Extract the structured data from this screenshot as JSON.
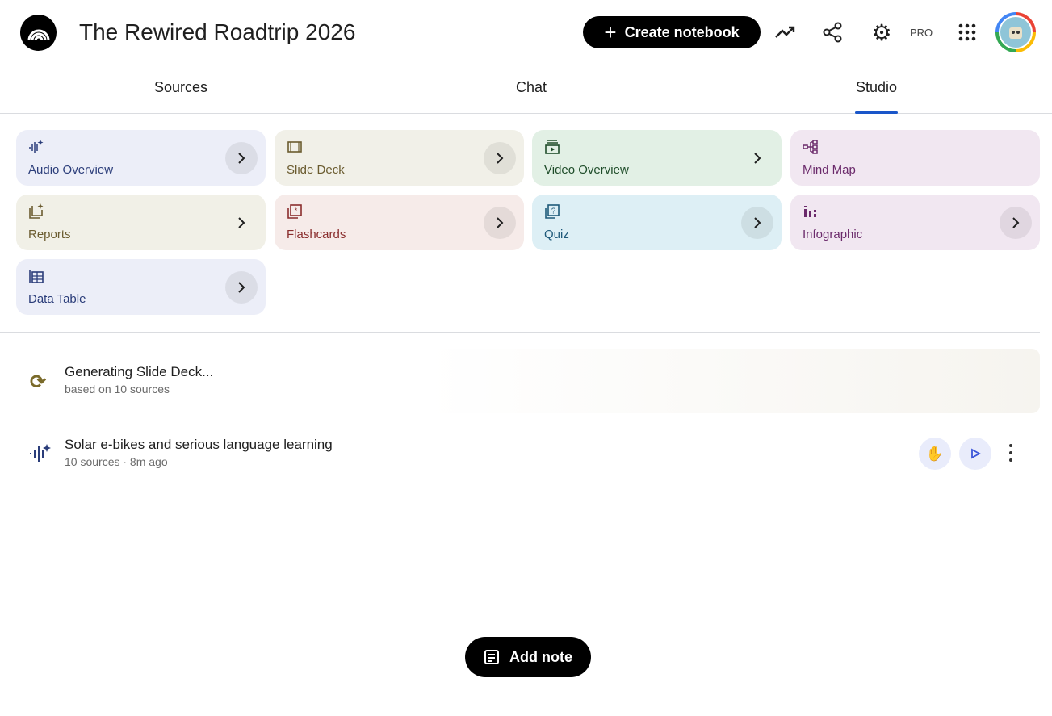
{
  "header": {
    "title": "The Rewired Roadtrip 2026",
    "create_label": "Create notebook",
    "pro_badge": "PRO"
  },
  "tabs": [
    {
      "label": "Sources"
    },
    {
      "label": "Chat"
    },
    {
      "label": "Studio",
      "active": true
    }
  ],
  "studio_cards": [
    {
      "label": "Audio Overview",
      "icon": "audio-sparkle-icon",
      "bg": "#eceef8",
      "color": "#2b3d7a"
    },
    {
      "label": "Slide Deck",
      "icon": "slides-icon",
      "bg": "#f1f0e8",
      "color": "#6b5c30"
    },
    {
      "label": "Video Overview",
      "icon": "video-icon",
      "bg": "#e2f0e5",
      "color": "#1f4d2a"
    },
    {
      "label": "Mind Map",
      "icon": "mind-map-icon",
      "bg": "#f1e7f1",
      "color": "#6b2a6b"
    },
    {
      "label": "Reports",
      "icon": "reports-icon",
      "bg": "#f1f0e7",
      "color": "#6b5c30"
    },
    {
      "label": "Flashcards",
      "icon": "flashcards-icon",
      "bg": "#f6ebe9",
      "color": "#8a2d2d"
    },
    {
      "label": "Quiz",
      "icon": "quiz-icon",
      "bg": "#ddeff5",
      "color": "#1f5a7a"
    },
    {
      "label": "Infographic",
      "icon": "infographic-icon",
      "bg": "#f1e7f1",
      "color": "#6b2a6b"
    },
    {
      "label": "Data Table",
      "icon": "data-table-icon",
      "bg": "#eceef8",
      "color": "#2b3d7a"
    }
  ],
  "items": [
    {
      "title": "Generating Slide Deck...",
      "subtitle": "based on 10 sources",
      "icon": "sync-icon"
    },
    {
      "title": "Solar e-bikes and serious language learning",
      "subtitle": "10 sources · 8m ago",
      "icon": "audio-sparkle-icon"
    }
  ],
  "add_note_label": "Add note"
}
